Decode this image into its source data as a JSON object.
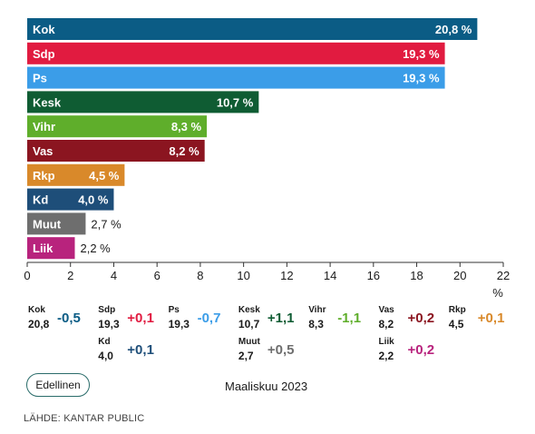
{
  "chart_data": {
    "type": "bar",
    "orientation": "horizontal",
    "categories": [
      "Kok",
      "Sdp",
      "Ps",
      "Kesk",
      "Vihr",
      "Vas",
      "Rkp",
      "Kd",
      "Muut",
      "Liik"
    ],
    "values": [
      20.8,
      19.3,
      19.3,
      10.7,
      8.3,
      8.2,
      4.5,
      4.0,
      2.7,
      2.2
    ],
    "value_labels": [
      "20,8 %",
      "19,3 %",
      "19,3 %",
      "10,7 %",
      "8,3 %",
      "8,2 %",
      "4,5 %",
      "4,0 %",
      "2,7 %",
      "2,2 %"
    ],
    "colors": [
      "#0b5c85",
      "#e11b40",
      "#3b9de8",
      "#0f5c33",
      "#5fae2b",
      "#8b1520",
      "#d9892a",
      "#1e4e79",
      "#6e6e6e",
      "#b8237d"
    ],
    "xlim": [
      0,
      22
    ],
    "xticks": [
      "0",
      "2",
      "4",
      "6",
      "8",
      "10",
      "12",
      "14",
      "16",
      "18",
      "20",
      "22"
    ],
    "xunit": "%",
    "grid": false,
    "legend": "none"
  },
  "legend": [
    {
      "name": "Kok",
      "value": "20,8",
      "change": "-0,5",
      "color": "#0b5c85"
    },
    {
      "name": "Sdp",
      "value": "19,3",
      "change": "+0,1",
      "color": "#e11b40"
    },
    {
      "name": "Ps",
      "value": "19,3",
      "change": "-0,7",
      "color": "#3b9de8"
    },
    {
      "name": "Kesk",
      "value": "10,7",
      "change": "+1,1",
      "color": "#0f5c33"
    },
    {
      "name": "Vihr",
      "value": "8,3",
      "change": "-1,1",
      "color": "#5fae2b"
    },
    {
      "name": "Vas",
      "value": "8,2",
      "change": "+0,2",
      "color": "#8b1520"
    },
    {
      "name": "Rkp",
      "value": "4,5",
      "change": "+0,1",
      "color": "#d9892a"
    },
    {
      "name": "Kd",
      "value": "4,0",
      "change": "+0,1",
      "color": "#1e4e79"
    },
    {
      "name": "Muut",
      "value": "2,7",
      "change": "+0,5",
      "color": "#6e6e6e"
    },
    {
      "name": "Liik",
      "value": "2,2",
      "change": "+0,2",
      "color": "#b8237d"
    }
  ],
  "controls": {
    "previous_label": "Edellinen"
  },
  "period": "Maaliskuu 2023",
  "source": "LÄHDE: KANTAR PUBLIC"
}
